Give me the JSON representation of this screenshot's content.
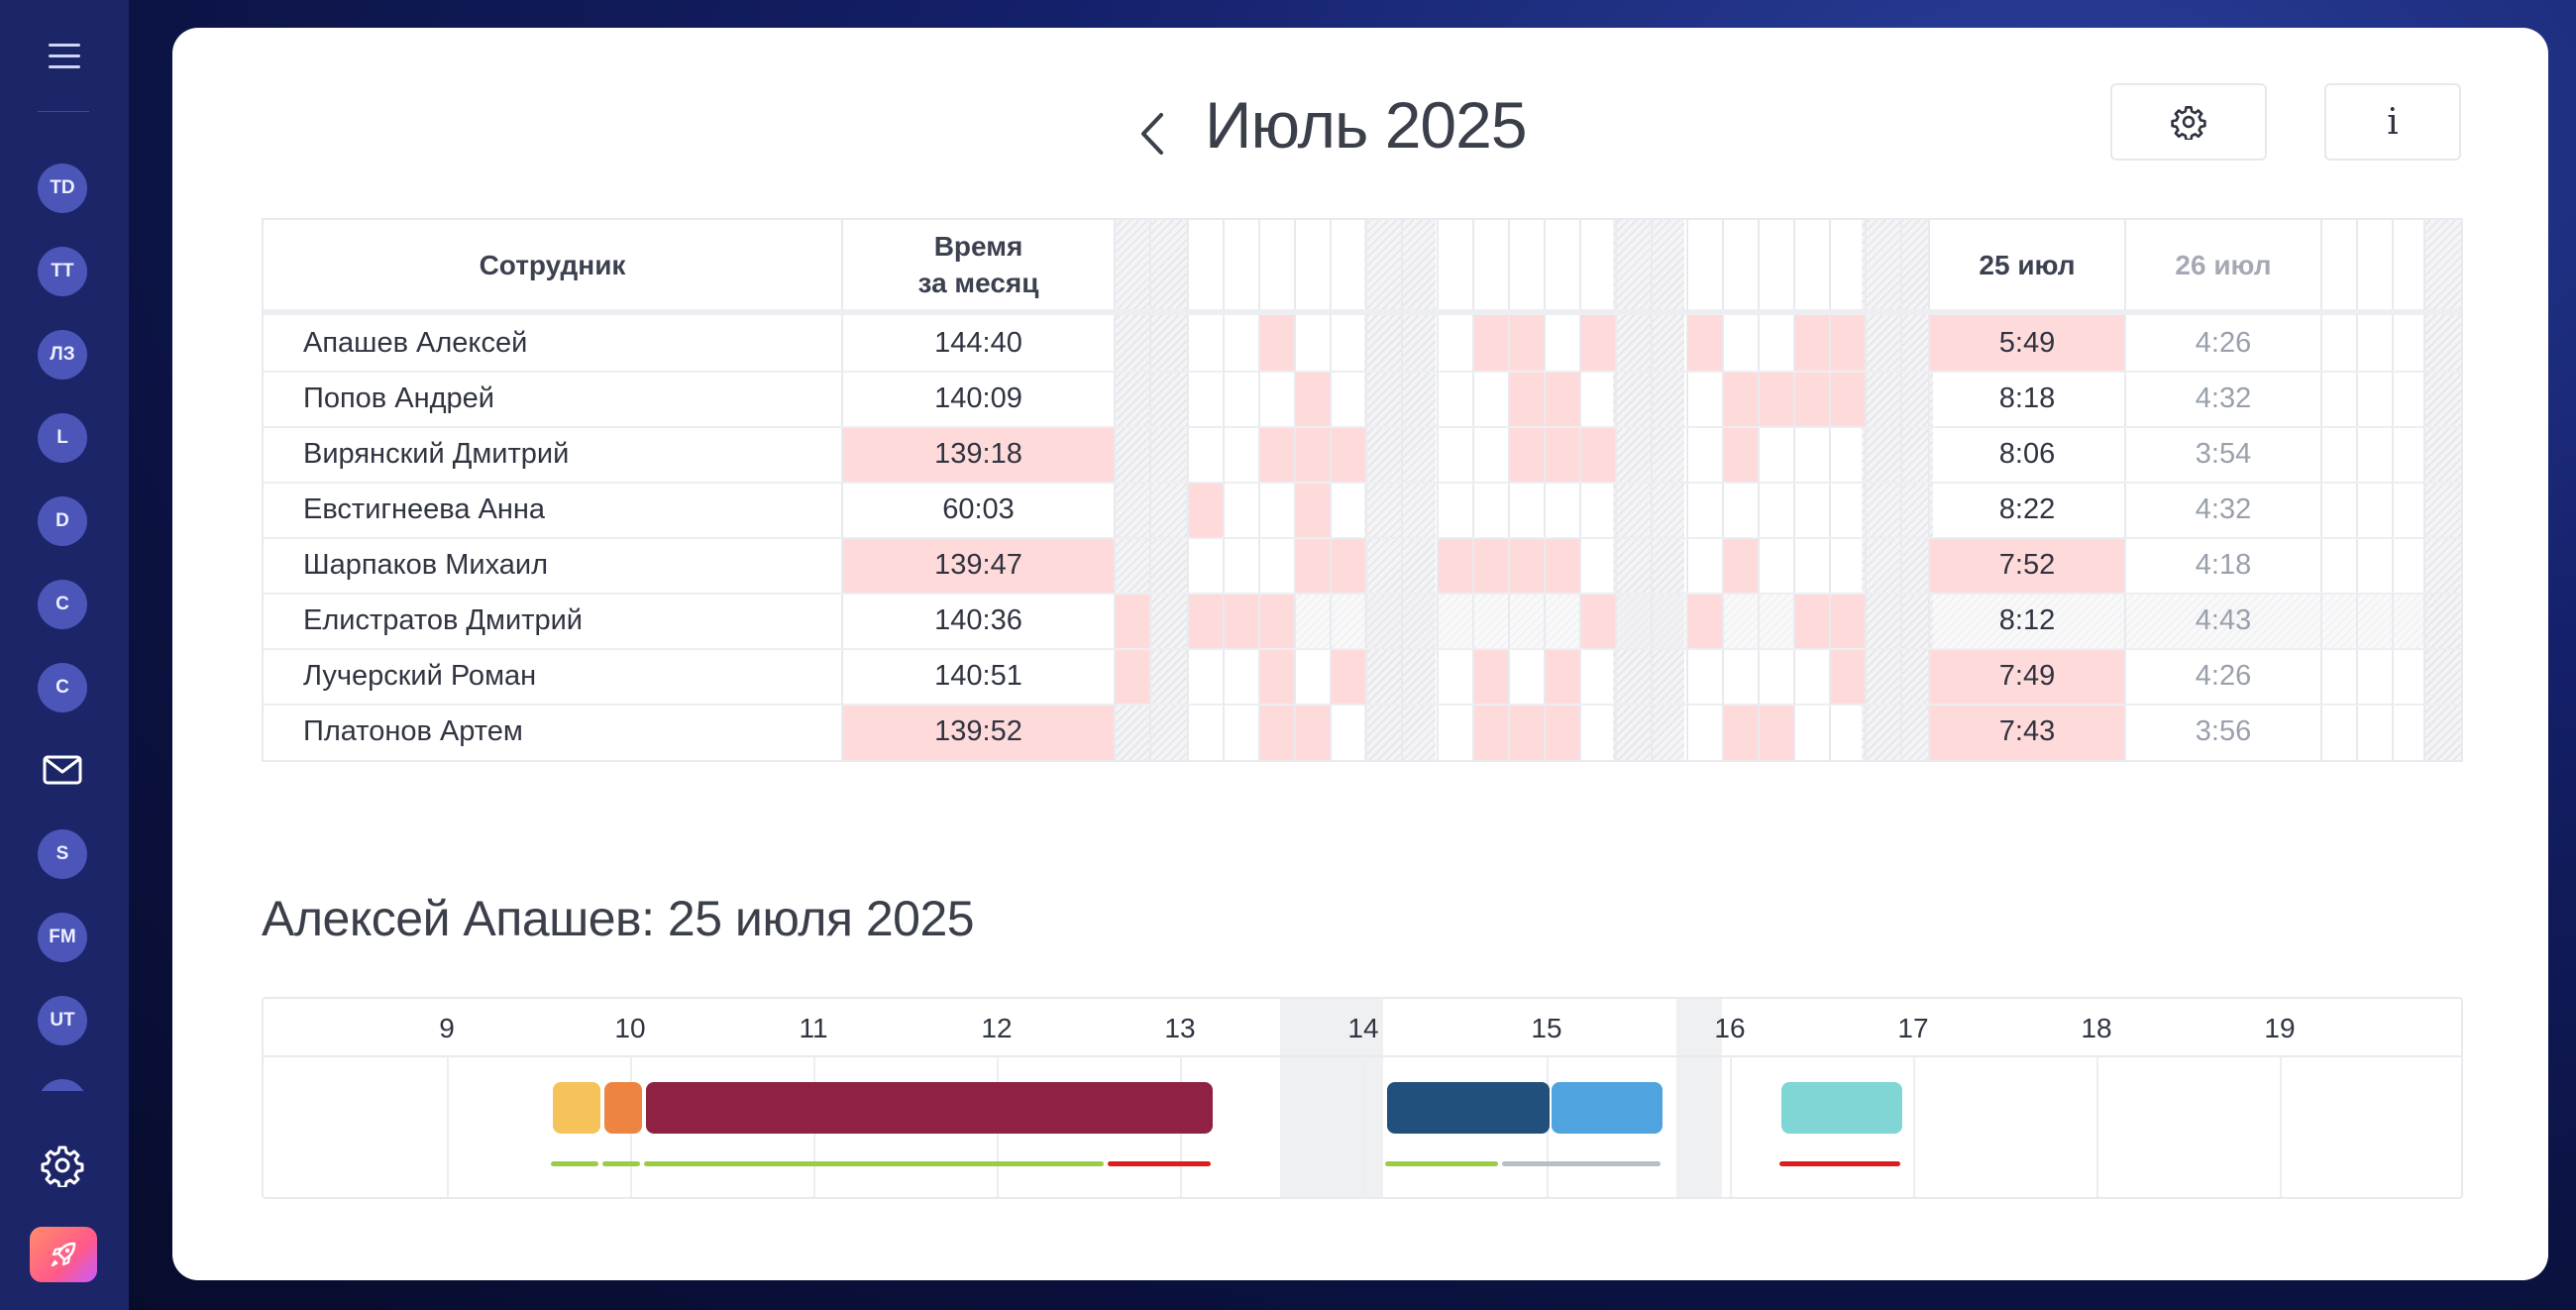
{
  "sidebar": {
    "avatars": [
      "TD",
      "TT",
      "ЛЗ",
      "L",
      "D",
      "C",
      "C",
      "S",
      "FM",
      "UT"
    ],
    "icons": [
      "menu-icon",
      "mail-icon",
      "gear-icon",
      "rocket-icon"
    ]
  },
  "header": {
    "month_title": "Июль 2025"
  },
  "table": {
    "col_employee": "Сотрудник",
    "col_time_l1": "Время",
    "col_time_l2": "за месяц",
    "col_day_a": "25 июл",
    "col_day_b": "26 июл",
    "rows": [
      {
        "name": "Апашев Алексей",
        "total": "144:40",
        "day_a": "5:49",
        "day_b": "4:26"
      },
      {
        "name": "Попов Андрей",
        "total": "140:09",
        "day_a": "8:18",
        "day_b": "4:32"
      },
      {
        "name": "Вирянский Дмитрий",
        "total": "139:18",
        "day_a": "8:06",
        "day_b": "3:54"
      },
      {
        "name": "Евстигнеева Анна",
        "total": "60:03",
        "day_a": "8:22",
        "day_b": "4:32"
      },
      {
        "name": "Шарпаков Михаил",
        "total": "139:47",
        "day_a": "7:52",
        "day_b": "4:18"
      },
      {
        "name": "Елистратов Дмитрий",
        "total": "140:36",
        "day_a": "8:12",
        "day_b": "4:43"
      },
      {
        "name": "Лучерский Роман",
        "total": "140:51",
        "day_a": "7:49",
        "day_b": "4:26"
      },
      {
        "name": "Платонов Артем",
        "total": "139:52",
        "day_a": "7:43",
        "day_b": "3:56"
      }
    ]
  },
  "detail": {
    "title": "Алексей Апашев: 25 июля 2025",
    "hours": [
      "9",
      "10",
      "11",
      "12",
      "13",
      "14",
      "15",
      "16",
      "17",
      "18",
      "19"
    ]
  },
  "colors": {
    "highlight": "#ffdadb",
    "block_yellow": "#f5c35a",
    "block_orange": "#ee8442",
    "block_crimson": "#8f2143",
    "block_navy": "#22507c",
    "block_blue": "#4fa3de",
    "block_teal": "#7fd6d4",
    "line_green": "#9acc48",
    "line_red": "#e01b1b",
    "line_grey": "#b8bec6"
  }
}
